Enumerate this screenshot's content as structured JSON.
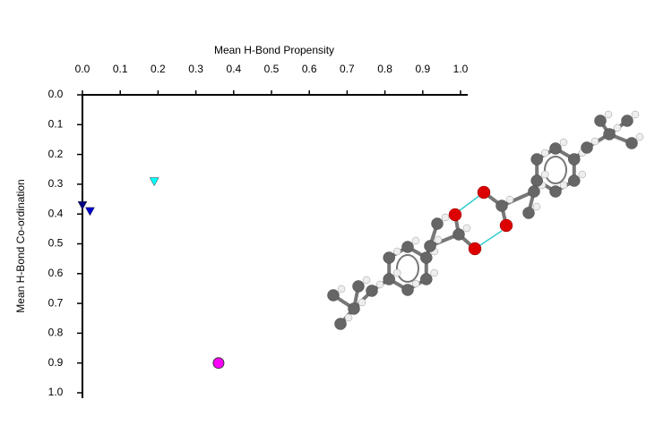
{
  "chart_data": {
    "type": "scatter",
    "xlabel": "Mean H-Bond Propensity",
    "ylabel": "Mean H-Bond Co-ordination",
    "xlim": [
      0,
      1
    ],
    "ylim": [
      0,
      1
    ],
    "xticks": [
      {
        "value": 0,
        "label": "0.0"
      },
      0.1,
      0.2,
      0.3,
      0.4,
      0.5,
      0.6,
      0.7,
      0.8,
      0.9,
      {
        "value": 1,
        "label": "1.0"
      }
    ],
    "yticks": [
      {
        "value": 0,
        "label": "0.0"
      },
      0.1,
      0.2,
      0.3,
      0.4,
      0.5,
      0.6,
      0.7,
      0.8,
      0.9,
      {
        "value": 1,
        "label": "1.0"
      }
    ],
    "x_axis_position": "top",
    "y_inverted": true,
    "series": [
      {
        "color": "#00ffff",
        "marker": "triangle-down",
        "x": [
          0.19
        ],
        "values": [
          0.29
        ]
      },
      {
        "color": "#000080",
        "marker": "triangle-down",
        "x": [
          0.0
        ],
        "values": [
          0.37
        ]
      },
      {
        "color": "#0000cd",
        "marker": "triangle-down",
        "x": [
          0.02
        ],
        "values": [
          0.39
        ]
      },
      {
        "color": "#ff00ff",
        "marker": "circle",
        "x": [
          0.36
        ],
        "values": [
          0.9
        ]
      }
    ]
  }
}
